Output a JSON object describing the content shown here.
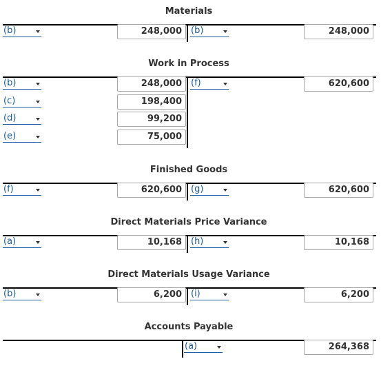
{
  "accounts": {
    "materials": {
      "title": "Materials",
      "debit": [
        {
          "label": "(b)",
          "amount": "248,000"
        }
      ],
      "credit": [
        {
          "label": "(b)",
          "amount": "248,000"
        }
      ]
    },
    "wip": {
      "title": "Work in Process",
      "debit": [
        {
          "label": "(b)",
          "amount": "248,000"
        },
        {
          "label": "(c)",
          "amount": "198,400"
        },
        {
          "label": "(d)",
          "amount": "99,200"
        },
        {
          "label": "(e)",
          "amount": "75,000"
        }
      ],
      "credit": [
        {
          "label": "(f)",
          "amount": "620,600"
        }
      ]
    },
    "finished_goods": {
      "title": "Finished Goods",
      "debit": [
        {
          "label": "(f)",
          "amount": "620,600"
        }
      ],
      "credit": [
        {
          "label": "(g)",
          "amount": "620,600"
        }
      ]
    },
    "price_variance": {
      "title": "Direct Materials Price Variance",
      "debit": [
        {
          "label": "(a)",
          "amount": "10,168"
        }
      ],
      "credit": [
        {
          "label": "(h)",
          "amount": "10,168"
        }
      ]
    },
    "usage_variance": {
      "title": "Direct Materials Usage Variance",
      "debit": [
        {
          "label": "(b)",
          "amount": "6,200"
        }
      ],
      "credit": [
        {
          "label": "(i)",
          "amount": "6,200"
        }
      ]
    },
    "accounts_payable": {
      "title": "Accounts Payable",
      "credit": [
        {
          "label": "(a)",
          "amount": "264,368"
        }
      ]
    }
  }
}
